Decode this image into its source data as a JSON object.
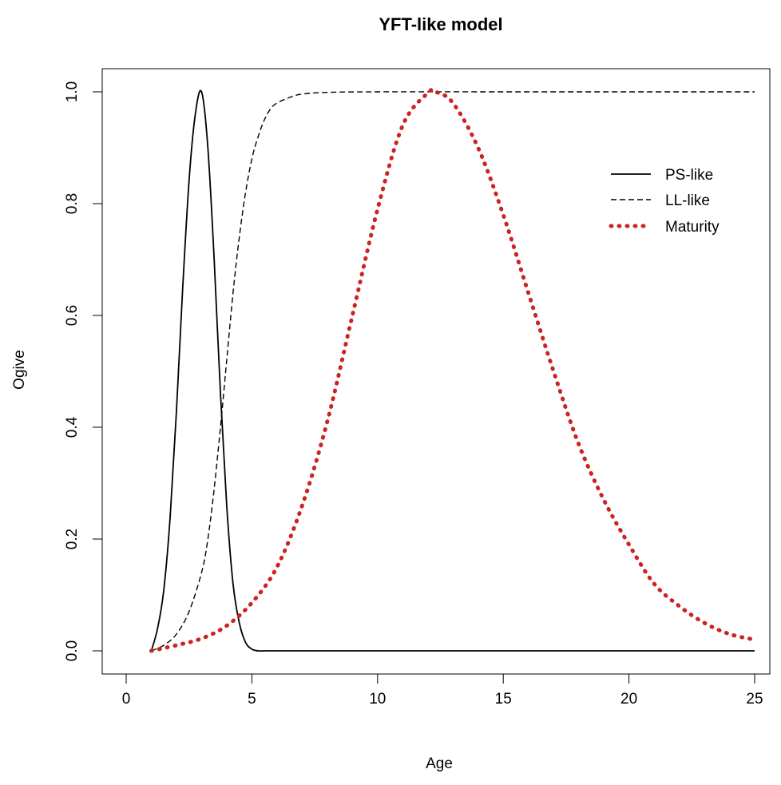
{
  "chart_data": {
    "type": "line",
    "title": "YFT-like model",
    "xlabel": "Age",
    "ylabel": "Ogive",
    "xlim": [
      0,
      25
    ],
    "ylim": [
      0,
      1
    ],
    "xticks": [
      0,
      5,
      10,
      15,
      20,
      25
    ],
    "xtick_labels": [
      "0",
      "5",
      "10",
      "15",
      "20",
      "25"
    ],
    "yticks": [
      0,
      0.2,
      0.4,
      0.6,
      0.8,
      1.0
    ],
    "ytick_labels": [
      "0.0",
      "0.2",
      "0.4",
      "0.6",
      "0.8",
      "1.0"
    ],
    "grid": false,
    "legend_position": "top-right",
    "series": [
      {
        "name": "PS-like",
        "style": "solid",
        "color": "#000000",
        "x": [
          1.0,
          1.25,
          1.5,
          1.75,
          2.0,
          2.25,
          2.5,
          2.75,
          3.0,
          3.25,
          3.5,
          3.75,
          4.0,
          4.25,
          4.5,
          4.75,
          5.0,
          5.25,
          5.5,
          6.0,
          8.0,
          10.0,
          15.0,
          20.0,
          25.0
        ],
        "y": [
          0.0,
          0.04,
          0.11,
          0.24,
          0.43,
          0.65,
          0.84,
          0.96,
          1.0,
          0.9,
          0.7,
          0.46,
          0.26,
          0.12,
          0.05,
          0.015,
          0.003,
          0.0,
          0.0,
          0.0,
          0.0,
          0.0,
          0.0,
          0.0,
          0.0
        ]
      },
      {
        "name": "LL-like",
        "style": "dashed",
        "color": "#000000",
        "x": [
          1.0,
          1.5,
          2.0,
          2.5,
          3.0,
          3.25,
          3.5,
          3.75,
          4.0,
          4.25,
          4.5,
          4.75,
          5.0,
          5.25,
          5.5,
          5.75,
          6.0,
          6.5,
          7.0,
          8.0,
          10.0,
          15.0,
          20.0,
          25.0
        ],
        "y": [
          0.0,
          0.01,
          0.03,
          0.07,
          0.14,
          0.2,
          0.29,
          0.4,
          0.52,
          0.64,
          0.74,
          0.82,
          0.88,
          0.92,
          0.95,
          0.97,
          0.98,
          0.99,
          0.996,
          0.999,
          1.0,
          1.0,
          1.0,
          1.0
        ]
      },
      {
        "name": "Maturity",
        "style": "dotted",
        "color": "#cc2222",
        "x": [
          1.0,
          2.0,
          3.0,
          4.0,
          5.0,
          6.0,
          7.0,
          8.0,
          9.0,
          10.0,
          11.0,
          12.0,
          12.3,
          13.0,
          14.0,
          15.0,
          16.0,
          17.0,
          18.0,
          19.0,
          20.0,
          21.0,
          22.0,
          23.0,
          24.0,
          25.0
        ],
        "y": [
          0.0,
          0.01,
          0.022,
          0.045,
          0.086,
          0.15,
          0.26,
          0.41,
          0.6,
          0.79,
          0.94,
          0.998,
          1.0,
          0.98,
          0.9,
          0.78,
          0.64,
          0.5,
          0.37,
          0.27,
          0.19,
          0.12,
          0.08,
          0.05,
          0.03,
          0.02
        ]
      }
    ]
  }
}
